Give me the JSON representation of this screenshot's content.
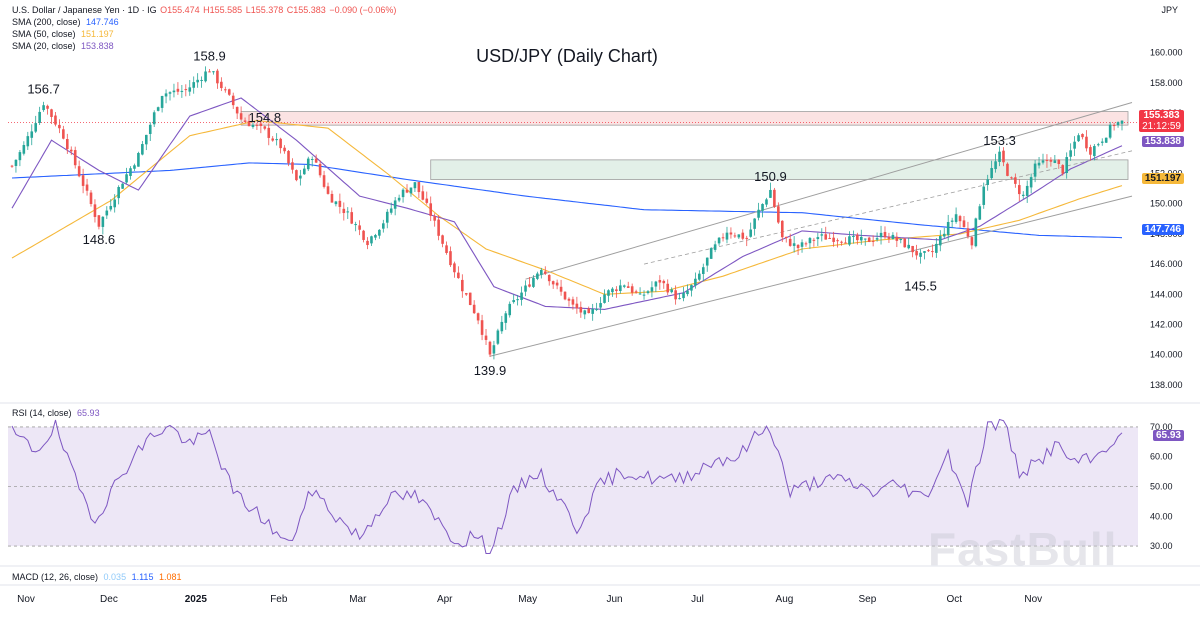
{
  "header": {
    "symbol_line": "U.S. Dollar / Japanese Yen · 1D · IG",
    "open": "O155.474",
    "high": "H155.585",
    "low": "L155.378",
    "close": "C155.383",
    "change": "−0.090 (−0.06%)",
    "currency_label": "JPY"
  },
  "indicators": {
    "sma200": {
      "label": "SMA (200, close)",
      "value": "147.746",
      "color": "#2962ff"
    },
    "sma50": {
      "label": "SMA (50, close)",
      "value": "151.197",
      "color": "#f5b83a"
    },
    "sma20": {
      "label": "SMA (20, close)",
      "value": "153.838",
      "color": "#7e57c2"
    },
    "rsi": {
      "label": "RSI (14, close)",
      "value": "65.93",
      "color": "#7e57c2"
    },
    "macd": {
      "label": "MACD (12, 26, close)",
      "v1": "0.035",
      "v2": "1.115",
      "v3": "1.081"
    }
  },
  "price_boxes": {
    "price": "155.383",
    "countdown": "21:12:59",
    "sma20": "153.838",
    "sma50": "151.197",
    "sma200": "147.746",
    "rsi": "65.93"
  },
  "colors": {
    "up": "#26a69a",
    "down": "#ef5350",
    "price_box": "#f23645",
    "resistance_zone": "#fbe3e3",
    "support_zone": "#e3f0e8",
    "rsi_band": "#ede7f6",
    "channel": "#9e9e9e"
  },
  "watermark": "FastBull",
  "chart_data": {
    "type": "candlestick",
    "title": "USD/JPY (Daily Chart)",
    "x_labels": [
      "Nov",
      "Dec",
      "2025",
      "Feb",
      "Mar",
      "Apr",
      "May",
      "Jun",
      "Jul",
      "Aug",
      "Sep",
      "Oct",
      "Nov"
    ],
    "y_ticks": [
      138.0,
      140.0,
      142.0,
      144.0,
      146.0,
      148.0,
      150.0,
      152.0,
      154.0,
      156.0,
      158.0,
      160.0
    ],
    "ylim": [
      137.0,
      161.5
    ],
    "rsi_ticks": [
      30.0,
      40.0,
      50.0,
      60.0,
      70.0
    ],
    "rsi_lim": [
      27,
      73
    ],
    "price_anchors": [
      [
        0,
        152.5
      ],
      [
        3,
        153.8
      ],
      [
        8,
        156.7
      ],
      [
        13,
        154.5
      ],
      [
        18,
        151.3
      ],
      [
        22,
        148.6
      ],
      [
        28,
        151.5
      ],
      [
        32,
        153.2
      ],
      [
        38,
        157.3
      ],
      [
        44,
        157.5
      ],
      [
        50,
        158.9
      ],
      [
        55,
        157.0
      ],
      [
        58,
        155.6
      ],
      [
        64,
        154.8
      ],
      [
        68,
        153.8
      ],
      [
        72,
        151.5
      ],
      [
        76,
        153.2
      ],
      [
        80,
        150.6
      ],
      [
        85,
        149.3
      ],
      [
        90,
        147.5
      ],
      [
        94,
        148.8
      ],
      [
        98,
        150.6
      ],
      [
        102,
        151.3
      ],
      [
        106,
        149.3
      ],
      [
        110,
        146.8
      ],
      [
        114,
        144.4
      ],
      [
        118,
        142.4
      ],
      [
        121,
        139.9
      ],
      [
        125,
        142.8
      ],
      [
        130,
        144.4
      ],
      [
        134,
        145.8
      ],
      [
        138,
        144.4
      ],
      [
        142,
        143.2
      ],
      [
        146,
        142.5
      ],
      [
        150,
        144.0
      ],
      [
        155,
        144.7
      ],
      [
        159,
        143.8
      ],
      [
        164,
        144.9
      ],
      [
        169,
        143.6
      ],
      [
        173,
        144.8
      ],
      [
        177,
        146.8
      ],
      [
        181,
        148.2
      ],
      [
        186,
        147.7
      ],
      [
        189,
        149.5
      ],
      [
        192,
        150.9
      ],
      [
        195,
        147.7
      ],
      [
        199,
        147.1
      ],
      [
        204,
        147.8
      ],
      [
        210,
        147.7
      ],
      [
        216,
        147.5
      ],
      [
        221,
        148.0
      ],
      [
        226,
        147.3
      ],
      [
        230,
        146.5
      ],
      [
        233,
        146.8
      ],
      [
        236,
        148.2
      ],
      [
        239,
        149.3
      ],
      [
        243,
        147.5
      ],
      [
        246,
        151.3
      ],
      [
        250,
        153.2
      ],
      [
        253,
        151.5
      ],
      [
        256,
        150.5
      ],
      [
        259,
        152.4
      ],
      [
        263,
        153.0
      ],
      [
        266,
        152.2
      ],
      [
        270,
        154.7
      ],
      [
        273,
        153.5
      ],
      [
        276,
        154.3
      ],
      [
        279,
        155.3
      ],
      [
        281,
        155.38
      ]
    ],
    "sma200_anchors": [
      [
        0,
        151.7
      ],
      [
        40,
        152.2
      ],
      [
        60,
        152.7
      ],
      [
        75,
        152.6
      ],
      [
        100,
        151.6
      ],
      [
        130,
        150.5
      ],
      [
        160,
        149.6
      ],
      [
        200,
        149.4
      ],
      [
        230,
        148.6
      ],
      [
        260,
        147.9
      ],
      [
        281,
        147.75
      ]
    ],
    "sma50_anchors": [
      [
        0,
        146.4
      ],
      [
        25,
        150.2
      ],
      [
        45,
        154.5
      ],
      [
        62,
        155.5
      ],
      [
        80,
        155.0
      ],
      [
        95,
        152.0
      ],
      [
        108,
        149.2
      ],
      [
        120,
        147.0
      ],
      [
        135,
        145.6
      ],
      [
        150,
        144.0
      ],
      [
        165,
        144.2
      ],
      [
        180,
        145.2
      ],
      [
        200,
        147.0
      ],
      [
        220,
        147.6
      ],
      [
        240,
        148.0
      ],
      [
        255,
        148.9
      ],
      [
        270,
        150.3
      ],
      [
        281,
        151.2
      ]
    ],
    "sma20_anchors": [
      [
        0,
        149.7
      ],
      [
        10,
        154.2
      ],
      [
        22,
        152.2
      ],
      [
        32,
        150.9
      ],
      [
        45,
        155.8
      ],
      [
        58,
        157.0
      ],
      [
        72,
        154.2
      ],
      [
        88,
        150.5
      ],
      [
        100,
        149.7
      ],
      [
        112,
        148.8
      ],
      [
        122,
        144.5
      ],
      [
        135,
        143.2
      ],
      [
        150,
        143.0
      ],
      [
        170,
        144.1
      ],
      [
        185,
        146.5
      ],
      [
        200,
        148.2
      ],
      [
        215,
        147.9
      ],
      [
        235,
        147.6
      ],
      [
        245,
        148.5
      ],
      [
        258,
        150.6
      ],
      [
        268,
        152.3
      ],
      [
        281,
        153.84
      ]
    ],
    "rsi_anchors": [
      [
        0,
        68
      ],
      [
        6,
        62
      ],
      [
        11,
        70
      ],
      [
        16,
        52
      ],
      [
        21,
        39
      ],
      [
        25,
        48
      ],
      [
        30,
        59
      ],
      [
        36,
        68
      ],
      [
        40,
        70
      ],
      [
        45,
        64
      ],
      [
        50,
        68
      ],
      [
        56,
        48
      ],
      [
        63,
        40
      ],
      [
        70,
        30
      ],
      [
        76,
        49
      ],
      [
        82,
        40
      ],
      [
        88,
        33
      ],
      [
        95,
        46
      ],
      [
        102,
        47
      ],
      [
        108,
        38
      ],
      [
        113,
        31
      ],
      [
        117,
        34
      ],
      [
        121,
        28
      ],
      [
        127,
        48
      ],
      [
        133,
        55
      ],
      [
        138,
        47
      ],
      [
        143,
        36
      ],
      [
        149,
        51
      ],
      [
        155,
        55
      ],
      [
        161,
        53
      ],
      [
        167,
        52
      ],
      [
        173,
        55
      ],
      [
        178,
        59
      ],
      [
        184,
        60
      ],
      [
        189,
        68
      ],
      [
        192,
        70
      ],
      [
        197,
        48
      ],
      [
        204,
        52
      ],
      [
        211,
        52
      ],
      [
        218,
        48
      ],
      [
        224,
        51
      ],
      [
        231,
        46
      ],
      [
        237,
        61
      ],
      [
        242,
        45
      ],
      [
        247,
        70
      ],
      [
        251,
        72
      ],
      [
        255,
        55
      ],
      [
        259,
        57
      ],
      [
        264,
        64
      ],
      [
        269,
        58
      ],
      [
        274,
        59
      ],
      [
        278,
        65
      ],
      [
        281,
        65.93
      ]
    ],
    "annotations": [
      {
        "text": "156.7",
        "x_day": 8,
        "price": 156.7,
        "pos": "above"
      },
      {
        "text": "158.9",
        "x_day": 50,
        "price": 158.9,
        "pos": "above"
      },
      {
        "text": "148.6",
        "x_day": 22,
        "price": 148.6,
        "pos": "below"
      },
      {
        "text": "154.8",
        "x_day": 64,
        "price": 154.8,
        "pos": "above"
      },
      {
        "text": "139.9",
        "x_day": 121,
        "price": 139.9,
        "pos": "below"
      },
      {
        "text": "150.9",
        "x_day": 192,
        "price": 150.9,
        "pos": "above"
      },
      {
        "text": "145.5",
        "x_day": 230,
        "price": 145.5,
        "pos": "below"
      },
      {
        "text": "153.3",
        "x_day": 250,
        "price": 153.3,
        "pos": "above"
      }
    ],
    "zones": [
      {
        "name": "resistance",
        "from": 155.2,
        "to": 156.1
      },
      {
        "name": "support",
        "from": 151.6,
        "to": 152.9
      }
    ],
    "channel": {
      "lower": [
        [
          121,
          139.9
        ],
        [
          281,
          150.5
        ]
      ],
      "upper": [
        [
          130,
          145.0
        ],
        [
          281,
          156.7
        ]
      ],
      "mid": [
        [
          160,
          146.0
        ],
        [
          281,
          153.5
        ]
      ]
    }
  }
}
